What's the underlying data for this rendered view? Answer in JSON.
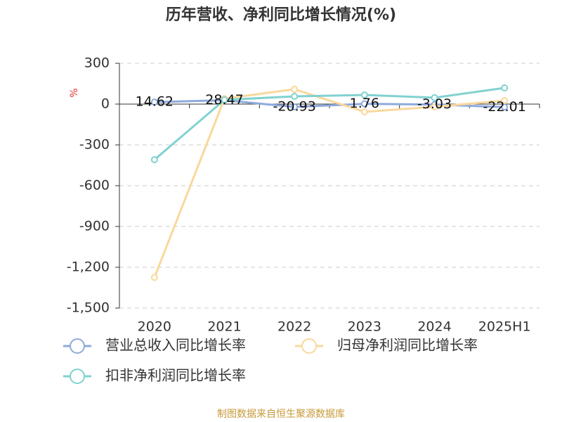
{
  "chart_data": {
    "type": "line",
    "title": "历年营收、净利同比增长情况(%)",
    "y_label": "%",
    "categories": [
      "2020",
      "2021",
      "2022",
      "2023",
      "2024",
      "2025H1"
    ],
    "series": [
      {
        "name": "营业总收入同比增长率",
        "color": "#8eaadc",
        "values": [
          14.62,
          28.47,
          -20.93,
          1.76,
          -3.03,
          -22.01
        ],
        "show_labels": true
      },
      {
        "name": "归母净利润同比增长率",
        "color": "#f9d89c",
        "values": [
          -1275,
          40,
          109,
          -57,
          -20,
          26
        ]
      },
      {
        "name": "扣非净利润同比增长率",
        "color": "#80d2d0",
        "values": [
          -409,
          31,
          57,
          67,
          47,
          119
        ]
      }
    ],
    "ylim": [
      -1500,
      300
    ],
    "yticks": [
      300,
      0,
      -300,
      -600,
      -900,
      {
        "value": -1200,
        "label": "-1,200"
      },
      {
        "value": -1500,
        "label": "-1,500"
      }
    ],
    "grid": true,
    "legend": "bottom",
    "source": "制图数据来自恒生聚源数据库"
  }
}
